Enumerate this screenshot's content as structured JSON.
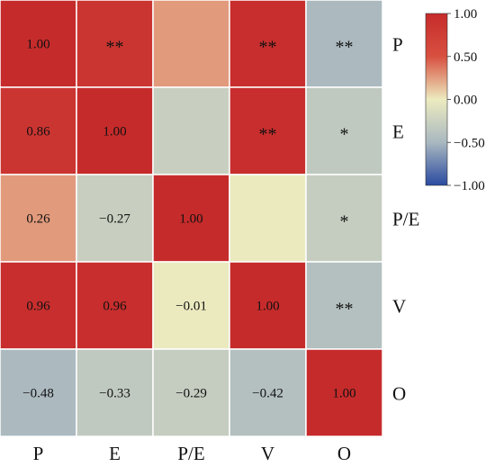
{
  "chart_data": {
    "type": "heatmap",
    "title": "",
    "row_labels": [
      "P",
      "E",
      "P/E",
      "V",
      "O"
    ],
    "col_labels": [
      "P",
      "E",
      "P/E",
      "V",
      "O"
    ],
    "lower_triangle_values": [
      [
        1.0,
        null,
        null,
        null,
        null
      ],
      [
        0.86,
        1.0,
        null,
        null,
        null
      ],
      [
        0.26,
        -0.27,
        1.0,
        null,
        null
      ],
      [
        0.96,
        0.96,
        -0.01,
        1.0,
        null
      ],
      [
        -0.48,
        -0.33,
        -0.29,
        -0.42,
        1.0
      ]
    ],
    "value_labels": [
      [
        "1.00",
        "",
        "",
        "",
        ""
      ],
      [
        "0.86",
        "1.00",
        "",
        "",
        ""
      ],
      [
        "0.26",
        "−0.27",
        "1.00",
        "",
        ""
      ],
      [
        "0.96",
        "0.96",
        "−0.01",
        "1.00",
        ""
      ],
      [
        "−0.48",
        "−0.33",
        "−0.29",
        "−0.42",
        "1.00"
      ]
    ],
    "significance": [
      [
        "",
        "**",
        "",
        "**",
        "**"
      ],
      [
        "",
        "",
        "",
        "**",
        "*"
      ],
      [
        "",
        "",
        "",
        "",
        "*"
      ],
      [
        "",
        "",
        "",
        "",
        "**"
      ],
      [
        "",
        "",
        "",
        "",
        ""
      ]
    ],
    "colorbar": {
      "range": [
        -1.0,
        1.0
      ],
      "ticks": [
        1.0,
        0.5,
        0.0,
        -0.5,
        -1.0
      ],
      "tick_labels": [
        "1.00",
        "0.50",
        "0.00",
        "−0.50",
        "−1.00"
      ],
      "colors": [
        "#2a4aa0",
        "#a9b8c0",
        "#ecebbf",
        "#d85040",
        "#c62b2b"
      ]
    },
    "grid": true
  }
}
